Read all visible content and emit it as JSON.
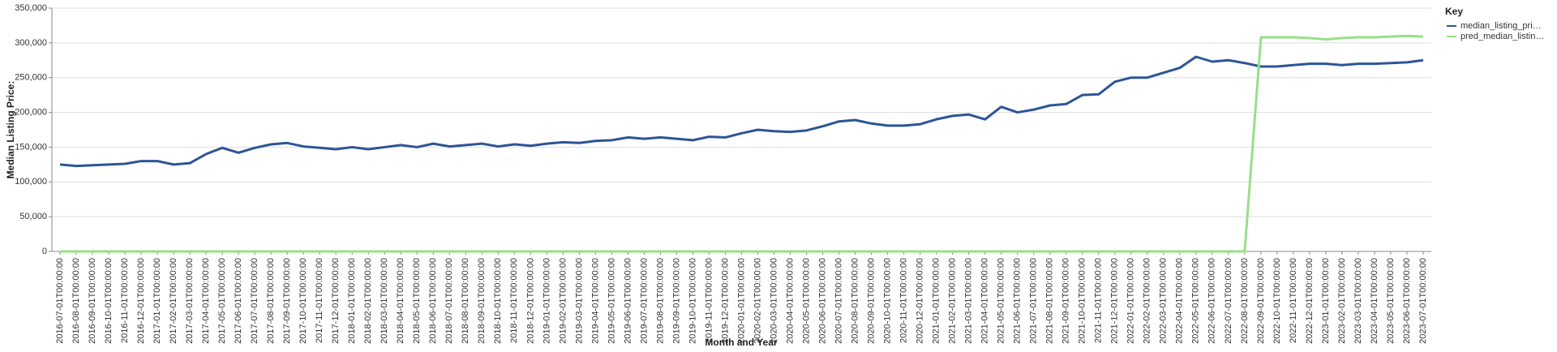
{
  "chart_data": {
    "type": "line",
    "x_label": "Month and Year",
    "y_label": "Median Listing Price:",
    "legend_title": "Key",
    "legend": "right",
    "grid": true,
    "categories": [
      "2016-07-01T00:00:00",
      "2016-08-01T00:00:00",
      "2016-09-01T00:00:00",
      "2016-10-01T00:00:00",
      "2016-11-01T00:00:00",
      "2016-12-01T00:00:00",
      "2017-01-01T00:00:00",
      "2017-02-01T00:00:00",
      "2017-03-01T00:00:00",
      "2017-04-01T00:00:00",
      "2017-05-01T00:00:00",
      "2017-06-01T00:00:00",
      "2017-07-01T00:00:00",
      "2017-08-01T00:00:00",
      "2017-09-01T00:00:00",
      "2017-10-01T00:00:00",
      "2017-11-01T00:00:00",
      "2017-12-01T00:00:00",
      "2018-01-01T00:00:00",
      "2018-02-01T00:00:00",
      "2018-03-01T00:00:00",
      "2018-04-01T00:00:00",
      "2018-05-01T00:00:00",
      "2018-06-01T00:00:00",
      "2018-07-01T00:00:00",
      "2018-08-01T00:00:00",
      "2018-09-01T00:00:00",
      "2018-10-01T00:00:00",
      "2018-11-01T00:00:00",
      "2018-12-01T00:00:00",
      "2019-01-01T00:00:00",
      "2019-02-01T00:00:00",
      "2019-03-01T00:00:00",
      "2019-04-01T00:00:00",
      "2019-05-01T00:00:00",
      "2019-06-01T00:00:00",
      "2019-07-01T00:00:00",
      "2019-08-01T00:00:00",
      "2019-09-01T00:00:00",
      "2019-10-01T00:00:00",
      "2019-11-01T00:00:00",
      "2019-12-01T00:00:00",
      "2020-01-01T00:00:00",
      "2020-02-01T00:00:00",
      "2020-03-01T00:00:00",
      "2020-04-01T00:00:00",
      "2020-05-01T00:00:00",
      "2020-06-01T00:00:00",
      "2020-07-01T00:00:00",
      "2020-08-01T00:00:00",
      "2020-09-01T00:00:00",
      "2020-10-01T00:00:00",
      "2020-11-01T00:00:00",
      "2020-12-01T00:00:00",
      "2021-01-01T00:00:00",
      "2021-02-01T00:00:00",
      "2021-03-01T00:00:00",
      "2021-04-01T00:00:00",
      "2021-05-01T00:00:00",
      "2021-06-01T00:00:00",
      "2021-07-01T00:00:00",
      "2021-08-01T00:00:00",
      "2021-09-01T00:00:00",
      "2021-10-01T00:00:00",
      "2021-11-01T00:00:00",
      "2021-12-01T00:00:00",
      "2022-01-01T00:00:00",
      "2022-02-01T00:00:00",
      "2022-03-01T00:00:00",
      "2022-04-01T00:00:00",
      "2022-05-01T00:00:00",
      "2022-06-01T00:00:00",
      "2022-07-01T00:00:00",
      "2022-08-01T00:00:00",
      "2022-09-01T00:00:00",
      "2022-10-01T00:00:00",
      "2022-11-01T00:00:00",
      "2022-12-01T00:00:00",
      "2023-01-01T00:00:00",
      "2023-02-01T00:00:00",
      "2023-03-01T00:00:00",
      "2023-04-01T00:00:00",
      "2023-05-01T00:00:00",
      "2023-06-01T00:00:00",
      "2023-07-01T00:00:00"
    ],
    "series": [
      {
        "name": "median_listing_pri…",
        "color": "#2c5597",
        "values": [
          125000,
          123000,
          124000,
          125000,
          126000,
          130000,
          130000,
          125000,
          127000,
          140000,
          149000,
          142000,
          149000,
          154000,
          156000,
          151000,
          149000,
          147000,
          150000,
          147000,
          150000,
          153000,
          150000,
          155000,
          151000,
          153000,
          155000,
          151000,
          154000,
          152000,
          155000,
          157000,
          156000,
          159000,
          160000,
          164000,
          162000,
          164000,
          162000,
          160000,
          165000,
          164000,
          170000,
          175000,
          173000,
          172000,
          174000,
          180000,
          187000,
          189000,
          184000,
          181000,
          181000,
          183000,
          190000,
          195000,
          197000,
          190000,
          208000,
          200000,
          204000,
          210000,
          212000,
          225000,
          226000,
          244000,
          250000,
          250000,
          257000,
          264000,
          280000,
          273000,
          275000,
          271000,
          266000,
          266000,
          268000,
          270000,
          270000,
          268000,
          270000,
          270000,
          271000,
          272000,
          275000
        ]
      },
      {
        "name": "pred_median_listin…",
        "color": "#98df8a",
        "values": [
          0,
          0,
          0,
          0,
          0,
          0,
          0,
          0,
          0,
          0,
          0,
          0,
          0,
          0,
          0,
          0,
          0,
          0,
          0,
          0,
          0,
          0,
          0,
          0,
          0,
          0,
          0,
          0,
          0,
          0,
          0,
          0,
          0,
          0,
          0,
          0,
          0,
          0,
          0,
          0,
          0,
          0,
          0,
          0,
          0,
          0,
          0,
          0,
          0,
          0,
          0,
          0,
          0,
          0,
          0,
          0,
          0,
          0,
          0,
          0,
          0,
          0,
          0,
          0,
          0,
          0,
          0,
          0,
          0,
          0,
          0,
          0,
          0,
          0,
          308000,
          308000,
          308000,
          307000,
          305000,
          307000,
          308000,
          308000,
          309000,
          310000,
          309000
        ]
      }
    ],
    "ylim": [
      0,
      350000
    ],
    "yticks": [
      0,
      {
        "value": 50000,
        "label": "50,000"
      },
      {
        "value": 100000,
        "label": "100,000"
      },
      {
        "value": 150000,
        "label": "150,000"
      },
      {
        "value": 200000,
        "label": "200,000"
      },
      {
        "value": 250000,
        "label": "250,000"
      },
      {
        "value": 300000,
        "label": "300,000"
      },
      {
        "value": 350000,
        "label": "350,000"
      }
    ]
  }
}
